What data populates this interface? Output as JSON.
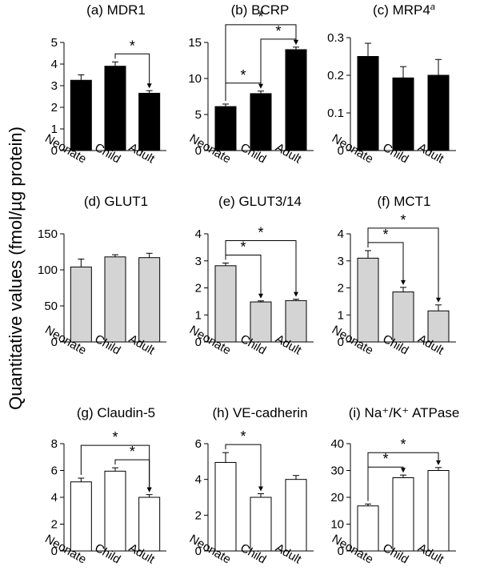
{
  "y_axis_label": "Quantitative values (fmol/µg protein)",
  "chart_data": [
    {
      "type": "bar",
      "title": "(a) MDR1",
      "title_sup": "",
      "bar_color": "#000000",
      "categories": [
        "Neonate",
        "Child",
        "Adult"
      ],
      "values": [
        3.25,
        3.9,
        2.65
      ],
      "errors": [
        0.25,
        0.2,
        0.12
      ],
      "ylim": [
        0,
        5
      ],
      "yticks": [
        "0",
        "1",
        "2",
        "3",
        "4",
        "5"
      ],
      "significance": [
        {
          "from": 1,
          "to": 2,
          "label": "*"
        }
      ]
    },
    {
      "type": "bar",
      "title": "(b) BCRP",
      "title_sup": "",
      "bar_color": "#000000",
      "categories": [
        "Neonate",
        "Child",
        "Adult"
      ],
      "values": [
        6.1,
        7.9,
        14.0
      ],
      "errors": [
        0.35,
        0.35,
        0.35
      ],
      "ylim": [
        0,
        15
      ],
      "yticks": [
        "0",
        "5",
        "10",
        "15"
      ],
      "significance": [
        {
          "from": 0,
          "to": 1,
          "label": "*"
        },
        {
          "from": 1,
          "to": 2,
          "label": "*"
        },
        {
          "from": 0,
          "to": 2,
          "label": "*"
        }
      ]
    },
    {
      "type": "bar",
      "title": "(c) MRP4",
      "title_sup": "a",
      "bar_color": "#000000",
      "categories": [
        "Neonate",
        "Child",
        "Adult"
      ],
      "values": [
        0.25,
        0.193,
        0.2
      ],
      "errors": [
        0.035,
        0.03,
        0.042
      ],
      "ylim": [
        0,
        0.3
      ],
      "yticks": [
        "0",
        "0.1",
        "0.2",
        "0.3"
      ],
      "significance": []
    },
    {
      "type": "bar",
      "title": "(d) GLUT1",
      "title_sup": "",
      "bar_color": "#d4d4d4",
      "categories": [
        "Neonate",
        "Child",
        "Adult"
      ],
      "values": [
        104,
        118,
        117
      ],
      "errors": [
        11,
        3,
        6
      ],
      "ylim": [
        0,
        150
      ],
      "yticks": [
        "0",
        "50",
        "100",
        "150"
      ],
      "significance": []
    },
    {
      "type": "bar",
      "title": "(e) GLUT3/14",
      "title_sup": "",
      "bar_color": "#d4d4d4",
      "categories": [
        "Neonate",
        "Child",
        "Adult"
      ],
      "values": [
        2.82,
        1.48,
        1.53
      ],
      "errors": [
        0.1,
        0.04,
        0.05
      ],
      "ylim": [
        0,
        4
      ],
      "yticks": [
        "0",
        "1",
        "2",
        "3",
        "4"
      ],
      "significance": [
        {
          "from": 0,
          "to": 1,
          "label": "*"
        },
        {
          "from": 0,
          "to": 2,
          "label": "*"
        }
      ]
    },
    {
      "type": "bar",
      "title": "(f) MCT1",
      "title_sup": "",
      "bar_color": "#d4d4d4",
      "categories": [
        "Neonate",
        "Child",
        "Adult"
      ],
      "values": [
        3.1,
        1.85,
        1.15
      ],
      "errors": [
        0.28,
        0.17,
        0.22
      ],
      "ylim": [
        0,
        4
      ],
      "yticks": [
        "0",
        "1",
        "2",
        "3",
        "4"
      ],
      "significance": [
        {
          "from": 0,
          "to": 1,
          "label": "*"
        },
        {
          "from": 0,
          "to": 2,
          "label": "*"
        }
      ]
    },
    {
      "type": "bar",
      "title": "(g) Claudin-5",
      "title_sup": "",
      "bar_color": "#ffffff",
      "categories": [
        "Neonate",
        "Child",
        "Adult"
      ],
      "values": [
        5.15,
        5.95,
        4.0
      ],
      "errors": [
        0.28,
        0.25,
        0.2
      ],
      "ylim": [
        0,
        8
      ],
      "yticks": [
        "0",
        "2",
        "4",
        "6",
        "8"
      ],
      "significance": [
        {
          "from": 1,
          "to": 2,
          "label": "*"
        },
        {
          "from": 0,
          "to": 2,
          "label": "*"
        }
      ]
    },
    {
      "type": "bar",
      "title": "(h) VE-cadherin",
      "title_sup": "",
      "bar_color": "#ffffff",
      "categories": [
        "Neonate",
        "Child",
        "Adult"
      ],
      "values": [
        4.95,
        3.0,
        4.0
      ],
      "errors": [
        0.55,
        0.2,
        0.22
      ],
      "ylim": [
        0,
        6
      ],
      "yticks": [
        "0",
        "2",
        "4",
        "6"
      ],
      "significance": [
        {
          "from": 0,
          "to": 1,
          "label": "*"
        }
      ]
    },
    {
      "type": "bar",
      "title": "(i) Na⁺/K⁺ ATPase",
      "title_sup": "",
      "bar_color": "#ffffff",
      "categories": [
        "Neonate",
        "Child",
        "Adult"
      ],
      "values": [
        16.8,
        27.3,
        30.0
      ],
      "errors": [
        0.7,
        1.0,
        1.1
      ],
      "ylim": [
        0,
        40
      ],
      "yticks": [
        "0",
        "10",
        "20",
        "30",
        "40"
      ],
      "significance": [
        {
          "from": 0,
          "to": 1,
          "label": "*"
        },
        {
          "from": 0,
          "to": 2,
          "label": "*"
        }
      ]
    }
  ]
}
